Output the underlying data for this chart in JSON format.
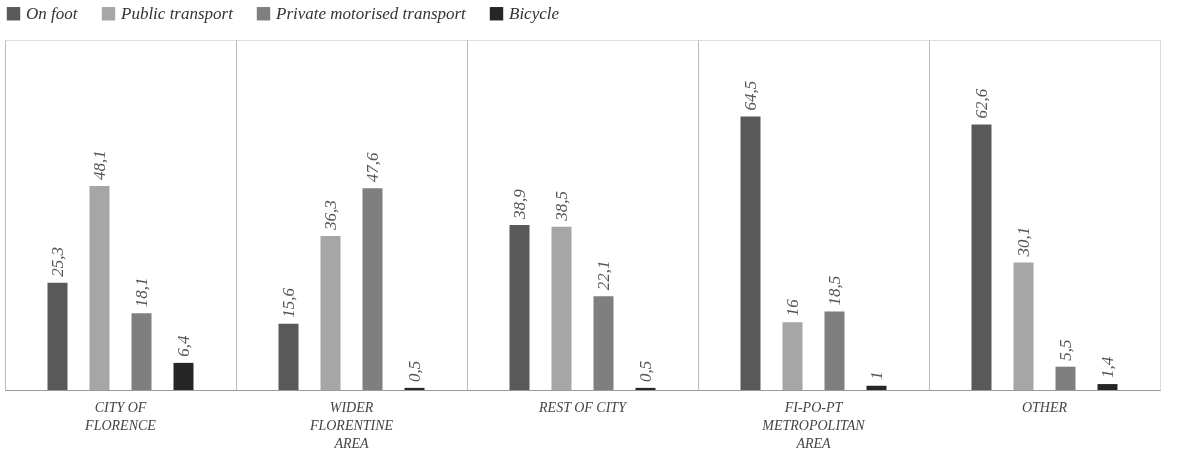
{
  "chart_data": {
    "type": "bar",
    "categories": [
      "CITY OF FLORENCE",
      "WIDER FLORENTINE AREA",
      "REST OF CITY",
      "FI-PO-PT METROPOLITAN AREA",
      "OTHER"
    ],
    "series": [
      {
        "name": "On foot",
        "color": "#595959",
        "values": [
          25.3,
          15.6,
          38.9,
          64.5,
          62.6
        ],
        "value_labels": [
          "25,3",
          "15,6",
          "38,9",
          "64,5",
          "62,6"
        ]
      },
      {
        "name": "Public transport",
        "color": "#a6a6a6",
        "values": [
          48.1,
          36.3,
          38.5,
          16,
          30.1
        ],
        "value_labels": [
          "48,1",
          "36,3",
          "38,5",
          "16",
          "30,1"
        ]
      },
      {
        "name": "Private motorised transport",
        "color": "#7f7f7f",
        "values": [
          18.1,
          47.6,
          22.1,
          18.5,
          5.5
        ],
        "value_labels": [
          "18,1",
          "47,6",
          "22,1",
          "18,5",
          "5,5"
        ]
      },
      {
        "name": "Bicycle",
        "color": "#262626",
        "values": [
          6.4,
          0.5,
          0.5,
          1,
          1.4
        ],
        "value_labels": [
          "6,4",
          "0,5",
          "0,5",
          "1",
          "1,4"
        ]
      }
    ],
    "legend": "top",
    "grid": "x"
  }
}
